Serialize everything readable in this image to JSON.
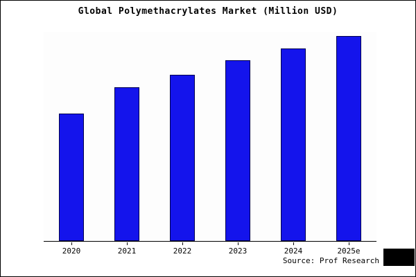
{
  "title": "Global Polymethacrylates Market (Million USD)",
  "source": "Source: Prof Research",
  "chart_data": {
    "type": "bar",
    "title": "Global Polymethacrylates Market (Million USD)",
    "categories": [
      "2020",
      "2021",
      "2022",
      "2023",
      "2024",
      "2025e"
    ],
    "values": [
      62,
      75,
      81,
      88,
      94,
      100
    ],
    "xlabel": "",
    "ylabel": "",
    "ylim": [
      0,
      102
    ],
    "grid": false,
    "legend": false,
    "bar_color": "#1414ec",
    "bar_edge_color": "#00004d",
    "axis_color": "#000000",
    "annotations": [
      "Source: Prof Research"
    ]
  }
}
